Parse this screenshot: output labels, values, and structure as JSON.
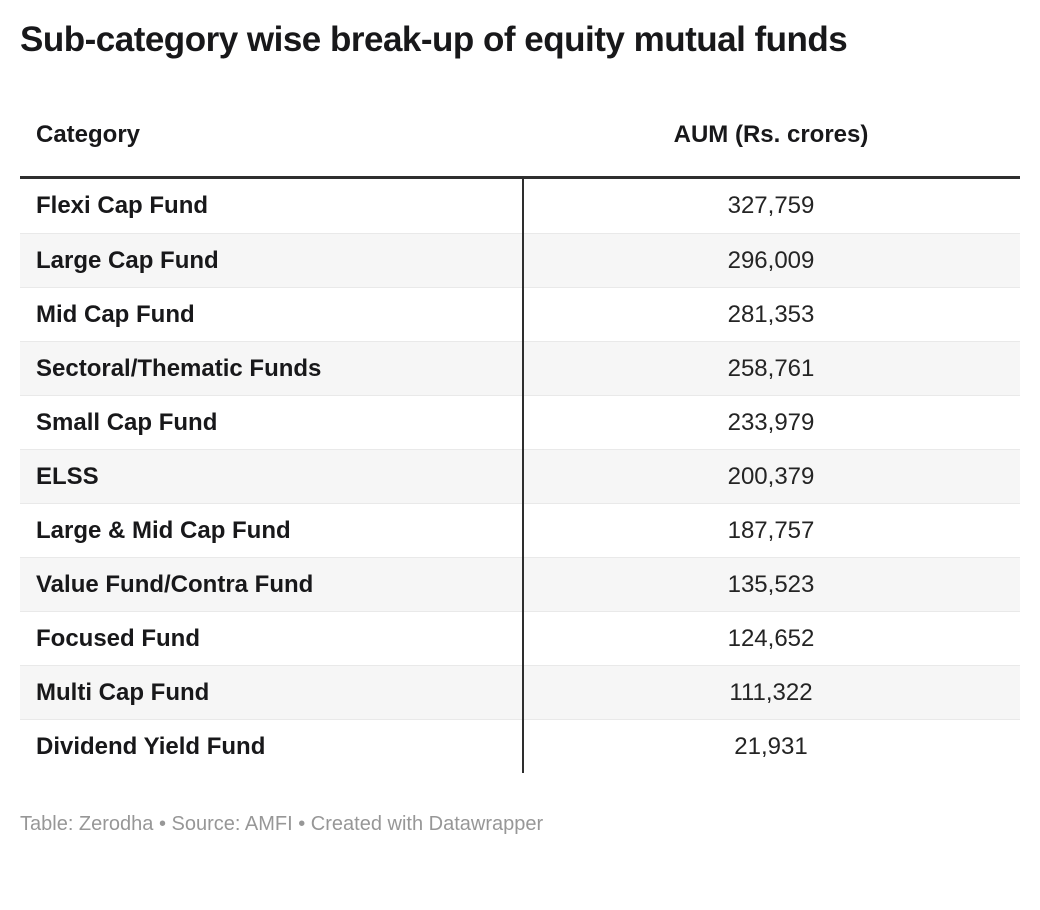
{
  "title": "Sub-category wise break-up of equity mutual funds",
  "table": {
    "header": {
      "category": "Category",
      "aum": "AUM (Rs. crores)"
    },
    "rows": [
      {
        "category": "Flexi Cap Fund",
        "aum": "327,759"
      },
      {
        "category": "Large Cap Fund",
        "aum": "296,009"
      },
      {
        "category": "Mid Cap Fund",
        "aum": "281,353"
      },
      {
        "category": "Sectoral/Thematic Funds",
        "aum": "258,761"
      },
      {
        "category": "Small Cap Fund",
        "aum": "233,979"
      },
      {
        "category": "ELSS",
        "aum": "200,379"
      },
      {
        "category": "Large & Mid Cap Fund",
        "aum": "187,757"
      },
      {
        "category": "Value Fund/Contra Fund",
        "aum": "135,523"
      },
      {
        "category": "Focused Fund",
        "aum": "124,652"
      },
      {
        "category": "Multi Cap Fund",
        "aum": "111,322"
      },
      {
        "category": "Dividend Yield Fund",
        "aum": "21,931"
      }
    ]
  },
  "footer": {
    "text": "Table: Zerodha • Source: AMFI • Created with Datawrapper"
  },
  "colors": {
    "header_rule": "#2e2e2e",
    "column_divider": "#2e2e2e",
    "row_stripe": "#f6f6f6",
    "row_border": "#e9e9e9",
    "text": "#18181a",
    "footer_text": "#979797",
    "background": "#ffffff"
  },
  "chart_data": {
    "type": "table",
    "title": "Sub-category wise break-up of equity mutual funds",
    "columns": [
      "Category",
      "AUM (Rs. crores)"
    ],
    "categories": [
      "Flexi Cap Fund",
      "Large Cap Fund",
      "Mid Cap Fund",
      "Sectoral/Thematic Funds",
      "Small Cap Fund",
      "ELSS",
      "Large & Mid Cap Fund",
      "Value Fund/Contra Fund",
      "Focused Fund",
      "Multi Cap Fund",
      "Dividend Yield Fund"
    ],
    "values": [
      327759,
      296009,
      281353,
      258761,
      233979,
      200379,
      187757,
      135523,
      124652,
      111322,
      21931
    ],
    "value_unit": "Rs. crores",
    "table_credit": "Zerodha",
    "source": "AMFI",
    "created_with": "Datawrapper",
    "layout": {
      "striped_rows": true,
      "category_align": "left",
      "value_align": "center"
    }
  }
}
